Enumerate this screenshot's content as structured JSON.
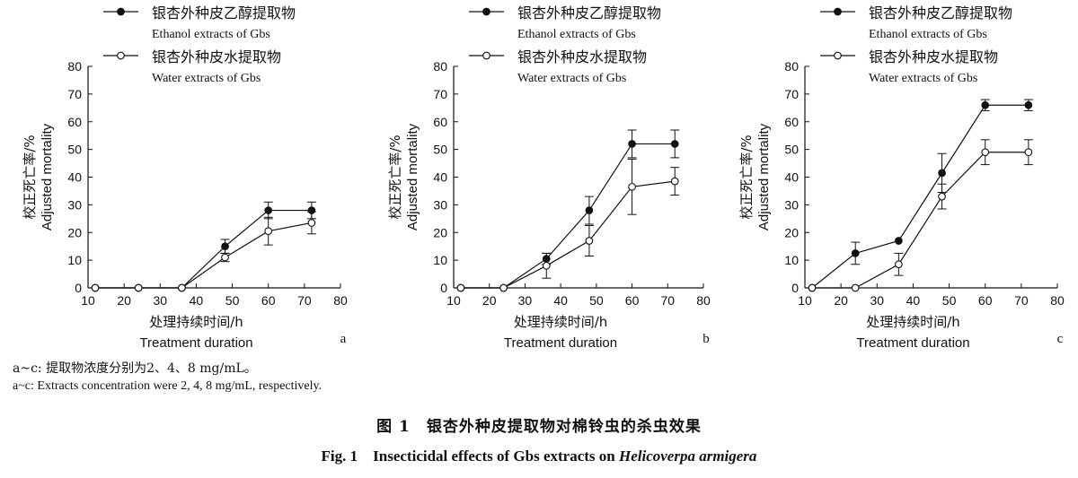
{
  "chart_data": [
    {
      "type": "line",
      "panel_label": "a",
      "xlabel": "处理持续时间/h",
      "xlabel_en": "Treatment duration",
      "ylabel": "校正死亡率/%",
      "ylabel_en": "Adjusted mortality",
      "xlim": [
        10,
        80
      ],
      "ylim": [
        0,
        80
      ],
      "xticks": [
        10,
        20,
        30,
        40,
        50,
        60,
        70,
        80
      ],
      "yticks": [
        0,
        10,
        20,
        30,
        40,
        50,
        60,
        70,
        80
      ],
      "series": [
        {
          "name": "银杏外种皮乙醇提取物",
          "name_en": "Ethanol extracts of Gbs",
          "marker": "filled",
          "x": [
            12,
            24,
            36,
            48,
            60,
            72
          ],
          "y": [
            0,
            0,
            0,
            15,
            28,
            28
          ],
          "err": [
            0,
            0,
            0,
            2.5,
            3,
            3
          ]
        },
        {
          "name": "银杏外种皮水提取物",
          "name_en": "Water extracts of Gbs",
          "marker": "open",
          "x": [
            12,
            24,
            36,
            48,
            60,
            72
          ],
          "y": [
            0,
            0,
            0,
            11,
            20.5,
            23.5
          ],
          "err": [
            0,
            0,
            0,
            1.5,
            5,
            4
          ]
        }
      ]
    },
    {
      "type": "line",
      "panel_label": "b",
      "xlabel": "处理持续时间/h",
      "xlabel_en": "Treatment duration",
      "ylabel": "校正死亡率/%",
      "ylabel_en": "Adjusted mortality",
      "xlim": [
        10,
        80
      ],
      "ylim": [
        0,
        80
      ],
      "xticks": [
        10,
        20,
        30,
        40,
        50,
        60,
        70,
        80
      ],
      "yticks": [
        0,
        10,
        20,
        30,
        40,
        50,
        60,
        70,
        80
      ],
      "series": [
        {
          "name": "银杏外种皮乙醇提取物",
          "name_en": "Ethanol extracts of Gbs",
          "marker": "filled",
          "x": [
            12,
            24,
            36,
            48,
            60,
            72
          ],
          "y": [
            0,
            0,
            10.5,
            28,
            52,
            52
          ],
          "err": [
            0,
            0,
            2,
            5,
            5,
            5
          ]
        },
        {
          "name": "银杏外种皮水提取物",
          "name_en": "Water extracts of Gbs",
          "marker": "open",
          "x": [
            12,
            24,
            36,
            48,
            60,
            72
          ],
          "y": [
            0,
            0,
            8,
            17,
            36.5,
            38.5
          ],
          "err": [
            0,
            0,
            4.5,
            5.5,
            10,
            5
          ]
        }
      ]
    },
    {
      "type": "line",
      "panel_label": "c",
      "xlabel": "处理持续时间/h",
      "xlabel_en": "Treatment duration",
      "ylabel": "校正死亡率/%",
      "ylabel_en": "Adjusted mortality",
      "xlim": [
        10,
        80
      ],
      "ylim": [
        0,
        80
      ],
      "xticks": [
        10,
        20,
        30,
        40,
        50,
        60,
        70,
        80
      ],
      "yticks": [
        0,
        10,
        20,
        30,
        40,
        50,
        60,
        70,
        80
      ],
      "series": [
        {
          "name": "银杏外种皮乙醇提取物",
          "name_en": "Ethanol extracts of Gbs",
          "marker": "filled",
          "x": [
            12,
            24,
            36,
            48,
            60,
            72
          ],
          "y": [
            0,
            12.5,
            17,
            41.5,
            66,
            66
          ],
          "err": [
            0,
            4,
            0,
            7,
            2,
            2
          ]
        },
        {
          "name": "银杏外种皮水提取物",
          "name_en": "Water extracts of Gbs",
          "marker": "open",
          "x": [
            12,
            24,
            36,
            48,
            60,
            72
          ],
          "y": [
            0,
            0,
            8.5,
            33,
            49,
            49
          ],
          "err": [
            0,
            0,
            4,
            4.5,
            4.5,
            4.5
          ]
        }
      ]
    }
  ],
  "note_cn": "a~c: 提取物浓度分别为2、4、8 mg/mL。",
  "note_en": "a~c: Extracts concentration were 2, 4, 8 mg/mL, respectively.",
  "caption_cn": "图 1　银杏外种皮提取物对棉铃虫的杀虫效果",
  "caption_en_prefix": "Fig. 1　Insecticidal effects of Gbs extracts on ",
  "caption_en_species": "Helicoverpa armigera"
}
